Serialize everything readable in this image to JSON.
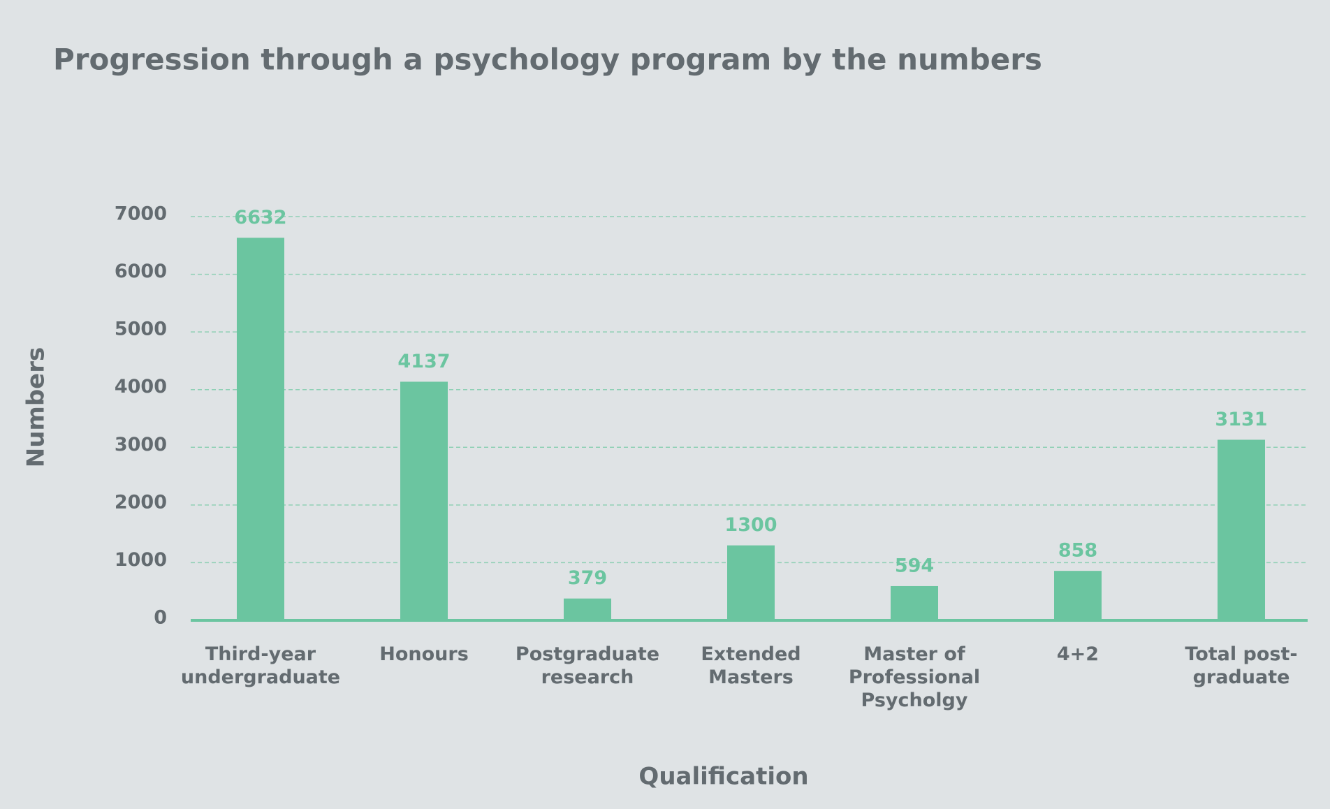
{
  "chart_data": {
    "type": "bar",
    "title": "Progression through a psychology program by the numbers",
    "categories": [
      "Third-year\nundergraduate",
      "Honours",
      "Postgraduate\nresearch",
      "Extended\nMasters",
      "Master of\nProfessional\nPsycholgy",
      "4+2",
      "Total post-\ngraduate"
    ],
    "values": [
      6632,
      4137,
      379,
      1300,
      594,
      858,
      3131
    ],
    "color": "#6bc5a0",
    "xlabel": "Qualification",
    "ylabel": "Numbers",
    "ylim": [
      0,
      7000
    ],
    "yticks": [
      0,
      1000,
      2000,
      3000,
      4000,
      5000,
      6000,
      7000
    ],
    "grid": true
  }
}
